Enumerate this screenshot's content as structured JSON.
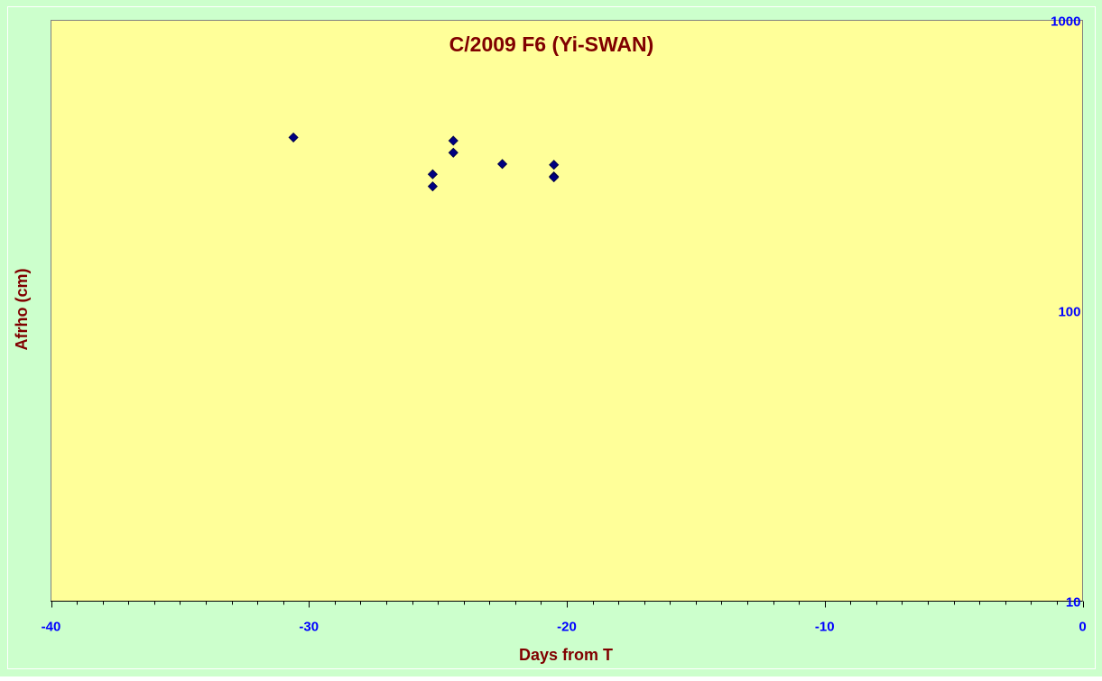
{
  "chart_data": {
    "type": "scatter",
    "title": "C/2009 F6 (Yi-SWAN)",
    "xlabel": "Days from T",
    "ylabel": "Afrho (cm)",
    "xlim": [
      -40,
      0
    ],
    "ylim": [
      10,
      1000
    ],
    "y_scale": "log",
    "x_ticks": [
      -40,
      -30,
      -20,
      -10,
      0
    ],
    "x_tick_labels": [
      "-40",
      "-30",
      "-20",
      "-10",
      "0"
    ],
    "x_minor_step": 1,
    "y_ticks": [
      10,
      100,
      1000
    ],
    "y_tick_labels": [
      "10",
      "100",
      "1000"
    ],
    "y_axis_side": "right",
    "grid": false,
    "legend": "none",
    "series": [
      {
        "marker": "diamond",
        "x": [
          -30.6,
          -25.2,
          -25.2,
          -24.4,
          -24.4,
          -22.5,
          -20.5,
          -20.5,
          -20.5
        ],
        "y": [
          395,
          295,
          268,
          385,
          350,
          320,
          318,
          290,
          288
        ]
      }
    ],
    "colors": {
      "outer_background": "#ccffcc",
      "plot_background": "#ffff99",
      "title": "#800000",
      "axis_label": "#800000",
      "tick_label": "#0000ff",
      "marker_fill": "#000080",
      "axis_line": "#000000"
    }
  }
}
